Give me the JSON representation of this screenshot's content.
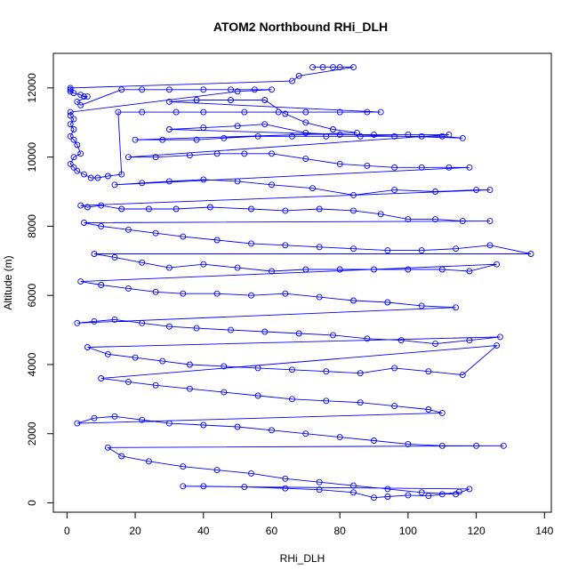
{
  "chart_data": {
    "type": "line",
    "title": "ATOM2 Northbound RHi_DLH",
    "xlabel": "RHi_DLH",
    "ylabel": "Altitude (m)",
    "xlim": [
      -4,
      142
    ],
    "ylim": [
      -270,
      13000
    ],
    "x_ticks": [
      0,
      20,
      40,
      60,
      80,
      100,
      120,
      140
    ],
    "y_ticks": [
      0,
      2000,
      4000,
      6000,
      8000,
      10000,
      12000
    ],
    "grid": false,
    "legend": "none",
    "series": [
      {
        "color": "#0000ff",
        "marker": "open-circle",
        "points": [
          [
            72,
            12600
          ],
          [
            75,
            12600
          ],
          [
            78,
            12600
          ],
          [
            80,
            12600
          ],
          [
            84,
            12600
          ],
          [
            68,
            12350
          ],
          [
            66,
            12200
          ],
          [
            1,
            12000
          ],
          [
            1,
            11950
          ],
          [
            1,
            11900
          ],
          [
            2,
            11850
          ],
          [
            4,
            11800
          ],
          [
            5,
            11750
          ],
          [
            6,
            11750
          ],
          [
            3,
            11600
          ],
          [
            4,
            11500
          ],
          [
            16,
            11950
          ],
          [
            22,
            11950
          ],
          [
            30,
            11950
          ],
          [
            40,
            11950
          ],
          [
            48,
            11950
          ],
          [
            55,
            11950
          ],
          [
            60,
            11950
          ],
          [
            50,
            11900
          ],
          [
            1,
            11300
          ],
          [
            1,
            11200
          ],
          [
            2,
            11100
          ],
          [
            1,
            10950
          ],
          [
            2,
            10800
          ],
          [
            1,
            10600
          ],
          [
            2,
            10500
          ],
          [
            3,
            10350
          ],
          [
            4,
            10100
          ],
          [
            2,
            10000
          ],
          [
            1,
            9800
          ],
          [
            2,
            9700
          ],
          [
            3,
            9600
          ],
          [
            5,
            9500
          ],
          [
            7,
            9400
          ],
          [
            9,
            9400
          ],
          [
            12,
            9450
          ],
          [
            16,
            9500
          ],
          [
            15,
            11300
          ],
          [
            22,
            11300
          ],
          [
            32,
            11300
          ],
          [
            40,
            11300
          ],
          [
            52,
            11300
          ],
          [
            62,
            11300
          ],
          [
            70,
            11300
          ],
          [
            80,
            11300
          ],
          [
            88,
            11300
          ],
          [
            92,
            11300
          ],
          [
            30,
            11600
          ],
          [
            38,
            11650
          ],
          [
            48,
            11650
          ],
          [
            58,
            11650
          ],
          [
            64,
            11250
          ],
          [
            70,
            11000
          ],
          [
            78,
            10800
          ],
          [
            85,
            10700
          ],
          [
            20,
            10500
          ],
          [
            28,
            10500
          ],
          [
            38,
            10500
          ],
          [
            46,
            10550
          ],
          [
            56,
            10600
          ],
          [
            66,
            10600
          ],
          [
            76,
            10600
          ],
          [
            86,
            10600
          ],
          [
            96,
            10600
          ],
          [
            104,
            10600
          ],
          [
            110,
            10600
          ],
          [
            116,
            10550
          ],
          [
            30,
            10800
          ],
          [
            40,
            10850
          ],
          [
            50,
            10900
          ],
          [
            58,
            10950
          ],
          [
            70,
            10700
          ],
          [
            80,
            10650
          ],
          [
            90,
            10650
          ],
          [
            100,
            10650
          ],
          [
            112,
            10650
          ],
          [
            18,
            10000
          ],
          [
            26,
            10000
          ],
          [
            36,
            10050
          ],
          [
            44,
            10100
          ],
          [
            52,
            10100
          ],
          [
            60,
            10100
          ],
          [
            70,
            9950
          ],
          [
            80,
            9800
          ],
          [
            88,
            9750
          ],
          [
            96,
            9700
          ],
          [
            104,
            9700
          ],
          [
            112,
            9700
          ],
          [
            118,
            9700
          ],
          [
            14,
            9200
          ],
          [
            22,
            9250
          ],
          [
            30,
            9300
          ],
          [
            40,
            9350
          ],
          [
            50,
            9300
          ],
          [
            60,
            9200
          ],
          [
            72,
            9100
          ],
          [
            84,
            8900
          ],
          [
            96,
            9050
          ],
          [
            108,
            9000
          ],
          [
            120,
            9050
          ],
          [
            124,
            9050
          ],
          [
            4,
            8600
          ],
          [
            6,
            8550
          ],
          [
            10,
            8600
          ],
          [
            16,
            8500
          ],
          [
            24,
            8500
          ],
          [
            32,
            8500
          ],
          [
            42,
            8550
          ],
          [
            54,
            8500
          ],
          [
            64,
            8450
          ],
          [
            74,
            8500
          ],
          [
            84,
            8450
          ],
          [
            92,
            8350
          ],
          [
            100,
            8200
          ],
          [
            108,
            8200
          ],
          [
            116,
            8150
          ],
          [
            124,
            8150
          ],
          [
            5,
            8100
          ],
          [
            10,
            8000
          ],
          [
            18,
            7900
          ],
          [
            26,
            7800
          ],
          [
            34,
            7700
          ],
          [
            44,
            7600
          ],
          [
            54,
            7500
          ],
          [
            64,
            7450
          ],
          [
            74,
            7400
          ],
          [
            84,
            7350
          ],
          [
            94,
            7300
          ],
          [
            104,
            7300
          ],
          [
            114,
            7350
          ],
          [
            124,
            7450
          ],
          [
            136,
            7200
          ],
          [
            8,
            7200
          ],
          [
            14,
            7100
          ],
          [
            22,
            6950
          ],
          [
            30,
            6800
          ],
          [
            40,
            6900
          ],
          [
            50,
            6800
          ],
          [
            60,
            6700
          ],
          [
            70,
            6750
          ],
          [
            80,
            6750
          ],
          [
            90,
            6750
          ],
          [
            100,
            6750
          ],
          [
            110,
            6750
          ],
          [
            118,
            6700
          ],
          [
            126,
            6900
          ],
          [
            4,
            6400
          ],
          [
            10,
            6300
          ],
          [
            18,
            6200
          ],
          [
            26,
            6100
          ],
          [
            34,
            6050
          ],
          [
            44,
            6050
          ],
          [
            54,
            6000
          ],
          [
            64,
            6050
          ],
          [
            74,
            5950
          ],
          [
            84,
            5850
          ],
          [
            94,
            5800
          ],
          [
            104,
            5700
          ],
          [
            114,
            5650
          ],
          [
            3,
            5200
          ],
          [
            8,
            5250
          ],
          [
            14,
            5300
          ],
          [
            22,
            5200
          ],
          [
            30,
            5100
          ],
          [
            38,
            5050
          ],
          [
            48,
            5000
          ],
          [
            58,
            4950
          ],
          [
            68,
            4900
          ],
          [
            78,
            4850
          ],
          [
            88,
            4750
          ],
          [
            98,
            4700
          ],
          [
            108,
            4600
          ],
          [
            118,
            4700
          ],
          [
            127,
            4800
          ],
          [
            6,
            4500
          ],
          [
            12,
            4300
          ],
          [
            20,
            4200
          ],
          [
            28,
            4100
          ],
          [
            36,
            4000
          ],
          [
            46,
            3950
          ],
          [
            56,
            3900
          ],
          [
            66,
            3850
          ],
          [
            76,
            3800
          ],
          [
            86,
            3750
          ],
          [
            96,
            3900
          ],
          [
            106,
            3800
          ],
          [
            116,
            3700
          ],
          [
            126,
            4550
          ],
          [
            10,
            3600
          ],
          [
            18,
            3500
          ],
          [
            26,
            3400
          ],
          [
            36,
            3300
          ],
          [
            46,
            3200
          ],
          [
            56,
            3100
          ],
          [
            66,
            3000
          ],
          [
            76,
            2950
          ],
          [
            86,
            2900
          ],
          [
            96,
            2800
          ],
          [
            106,
            2700
          ],
          [
            110,
            2600
          ],
          [
            3,
            2300
          ],
          [
            8,
            2450
          ],
          [
            14,
            2500
          ],
          [
            22,
            2400
          ],
          [
            30,
            2300
          ],
          [
            40,
            2250
          ],
          [
            50,
            2200
          ],
          [
            60,
            2100
          ],
          [
            70,
            2000
          ],
          [
            80,
            1900
          ],
          [
            90,
            1800
          ],
          [
            100,
            1700
          ],
          [
            110,
            1650
          ],
          [
            120,
            1650
          ],
          [
            128,
            1650
          ],
          [
            12,
            1600
          ],
          [
            16,
            1350
          ],
          [
            24,
            1200
          ],
          [
            34,
            1050
          ],
          [
            44,
            950
          ],
          [
            54,
            850
          ],
          [
            64,
            700
          ],
          [
            74,
            600
          ],
          [
            84,
            500
          ],
          [
            94,
            400
          ],
          [
            104,
            300
          ],
          [
            114,
            250
          ],
          [
            118,
            400
          ],
          [
            34,
            480
          ],
          [
            40,
            480
          ],
          [
            52,
            460
          ],
          [
            64,
            420
          ],
          [
            74,
            380
          ],
          [
            84,
            300
          ],
          [
            90,
            150
          ],
          [
            94,
            180
          ],
          [
            100,
            220
          ],
          [
            106,
            200
          ],
          [
            110,
            250
          ],
          [
            115,
            320
          ]
        ]
      }
    ]
  }
}
